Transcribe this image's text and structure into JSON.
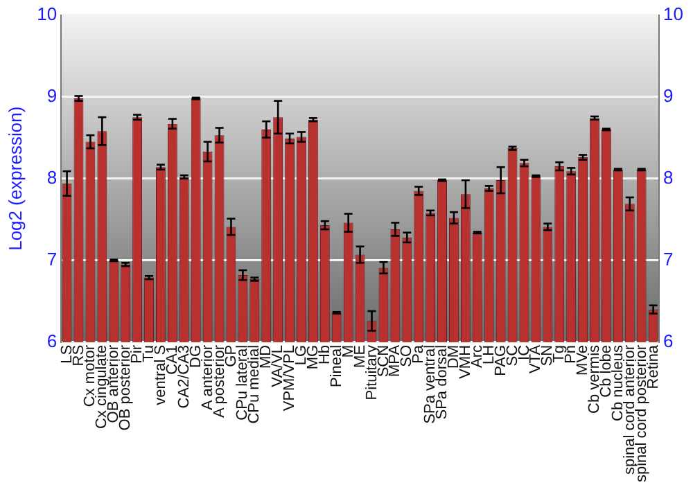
{
  "chart_data": {
    "type": "bar",
    "ylabel": "Log2 (expression)",
    "categories": [
      "LS",
      "RS",
      "Cx motor",
      "Cx cingulate",
      "OB anterior",
      "OB posterior",
      "Pir",
      "Tu",
      "ventral S",
      "CA1",
      "CA2/CA3",
      "DG",
      "A anterior",
      "A posterior",
      "GP",
      "CPu lateral",
      "CPu medial",
      "MD",
      "VA/VL",
      "VPM/VPL",
      "LG",
      "MG",
      "Hb",
      "Pineal",
      "M",
      "ME",
      "Pituitary",
      "SCN",
      "MPA",
      "SO",
      "Pa",
      "SPa ventral",
      "SPa dorsal",
      "DM",
      "VMH",
      "Arc",
      "LH",
      "PAG",
      "SC",
      "IC",
      "VTA",
      "SN",
      "Tg",
      "Pn",
      "MVe",
      "Cb vermis",
      "Cb lobe",
      "Cb nucleus",
      "spinal cord anterior",
      "spinal cord posterior",
      "Retina"
    ],
    "values": [
      7.94,
      8.98,
      8.45,
      8.58,
      7.0,
      6.95,
      8.75,
      6.79,
      8.14,
      8.67,
      8.02,
      8.98,
      8.33,
      8.53,
      7.41,
      6.82,
      6.77,
      8.6,
      8.75,
      8.49,
      8.51,
      8.72,
      7.43,
      6.36,
      7.46,
      7.07,
      6.26,
      6.91,
      7.38,
      7.28,
      7.85,
      7.58,
      7.98,
      7.52,
      7.81,
      7.34,
      7.88,
      7.98,
      8.37,
      8.19,
      8.03,
      7.41,
      8.15,
      8.09,
      8.26,
      8.74,
      8.6,
      8.11,
      7.69,
      8.11,
      6.4
    ],
    "errors": [
      0.15,
      0.03,
      0.08,
      0.17,
      0.01,
      0.02,
      0.03,
      0.02,
      0.03,
      0.06,
      0.02,
      0.01,
      0.12,
      0.09,
      0.1,
      0.06,
      0.02,
      0.1,
      0.2,
      0.06,
      0.06,
      0.02,
      0.05,
      0.01,
      0.11,
      0.1,
      0.12,
      0.07,
      0.08,
      0.06,
      0.05,
      0.03,
      0.01,
      0.07,
      0.17,
      0.01,
      0.03,
      0.16,
      0.02,
      0.04,
      0.01,
      0.04,
      0.05,
      0.04,
      0.03,
      0.02,
      0.01,
      0.01,
      0.08,
      0.01,
      0.05
    ],
    "color": "#b8312f",
    "ylim": [
      6,
      10
    ],
    "yticks": [
      6,
      7,
      8,
      9,
      10
    ],
    "y2lim": [
      6,
      10
    ],
    "y2ticks": [
      6,
      7,
      8,
      9,
      10
    ],
    "grid": "y"
  }
}
